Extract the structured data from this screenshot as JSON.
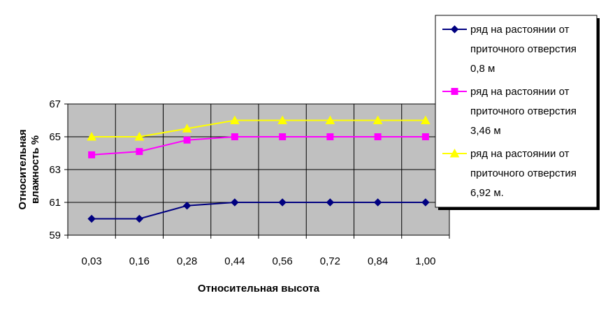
{
  "chart_data": {
    "type": "line",
    "categories": [
      "0,03",
      "0,16",
      "0,28",
      "0,44",
      "0,56",
      "0,72",
      "0,84",
      "1,00"
    ],
    "series": [
      {
        "name_lines": [
          "ряд на растоянии от",
          "приточного отверстия",
          "0,8 м"
        ],
        "color": "#000080",
        "marker": "diamond",
        "values": [
          60.0,
          60.0,
          60.8,
          61.0,
          61.0,
          61.0,
          61.0,
          61.0
        ]
      },
      {
        "name_lines": [
          "ряд на растоянии от",
          "приточного отверстия",
          "3,46 м"
        ],
        "color": "#FF00FF",
        "marker": "square",
        "values": [
          63.9,
          64.1,
          64.8,
          65.0,
          65.0,
          65.0,
          65.0,
          65.0
        ]
      },
      {
        "name_lines": [
          "ряд на растоянии от",
          "приточного отверстия",
          "6,92 м."
        ],
        "color": "#FFFF00",
        "marker": "triangle",
        "values": [
          65.0,
          65.0,
          65.5,
          66.0,
          66.0,
          66.0,
          66.0,
          66.0
        ]
      }
    ],
    "xlabel": "Относительная высота",
    "ylabel_lines": [
      "Относительная",
      "влажность %"
    ],
    "yticks": [
      "59",
      "61",
      "63",
      "65",
      "67"
    ],
    "ylim": [
      59,
      67
    ],
    "grid": true,
    "plot_background": "#C0C0C0",
    "legend_position": "right"
  }
}
